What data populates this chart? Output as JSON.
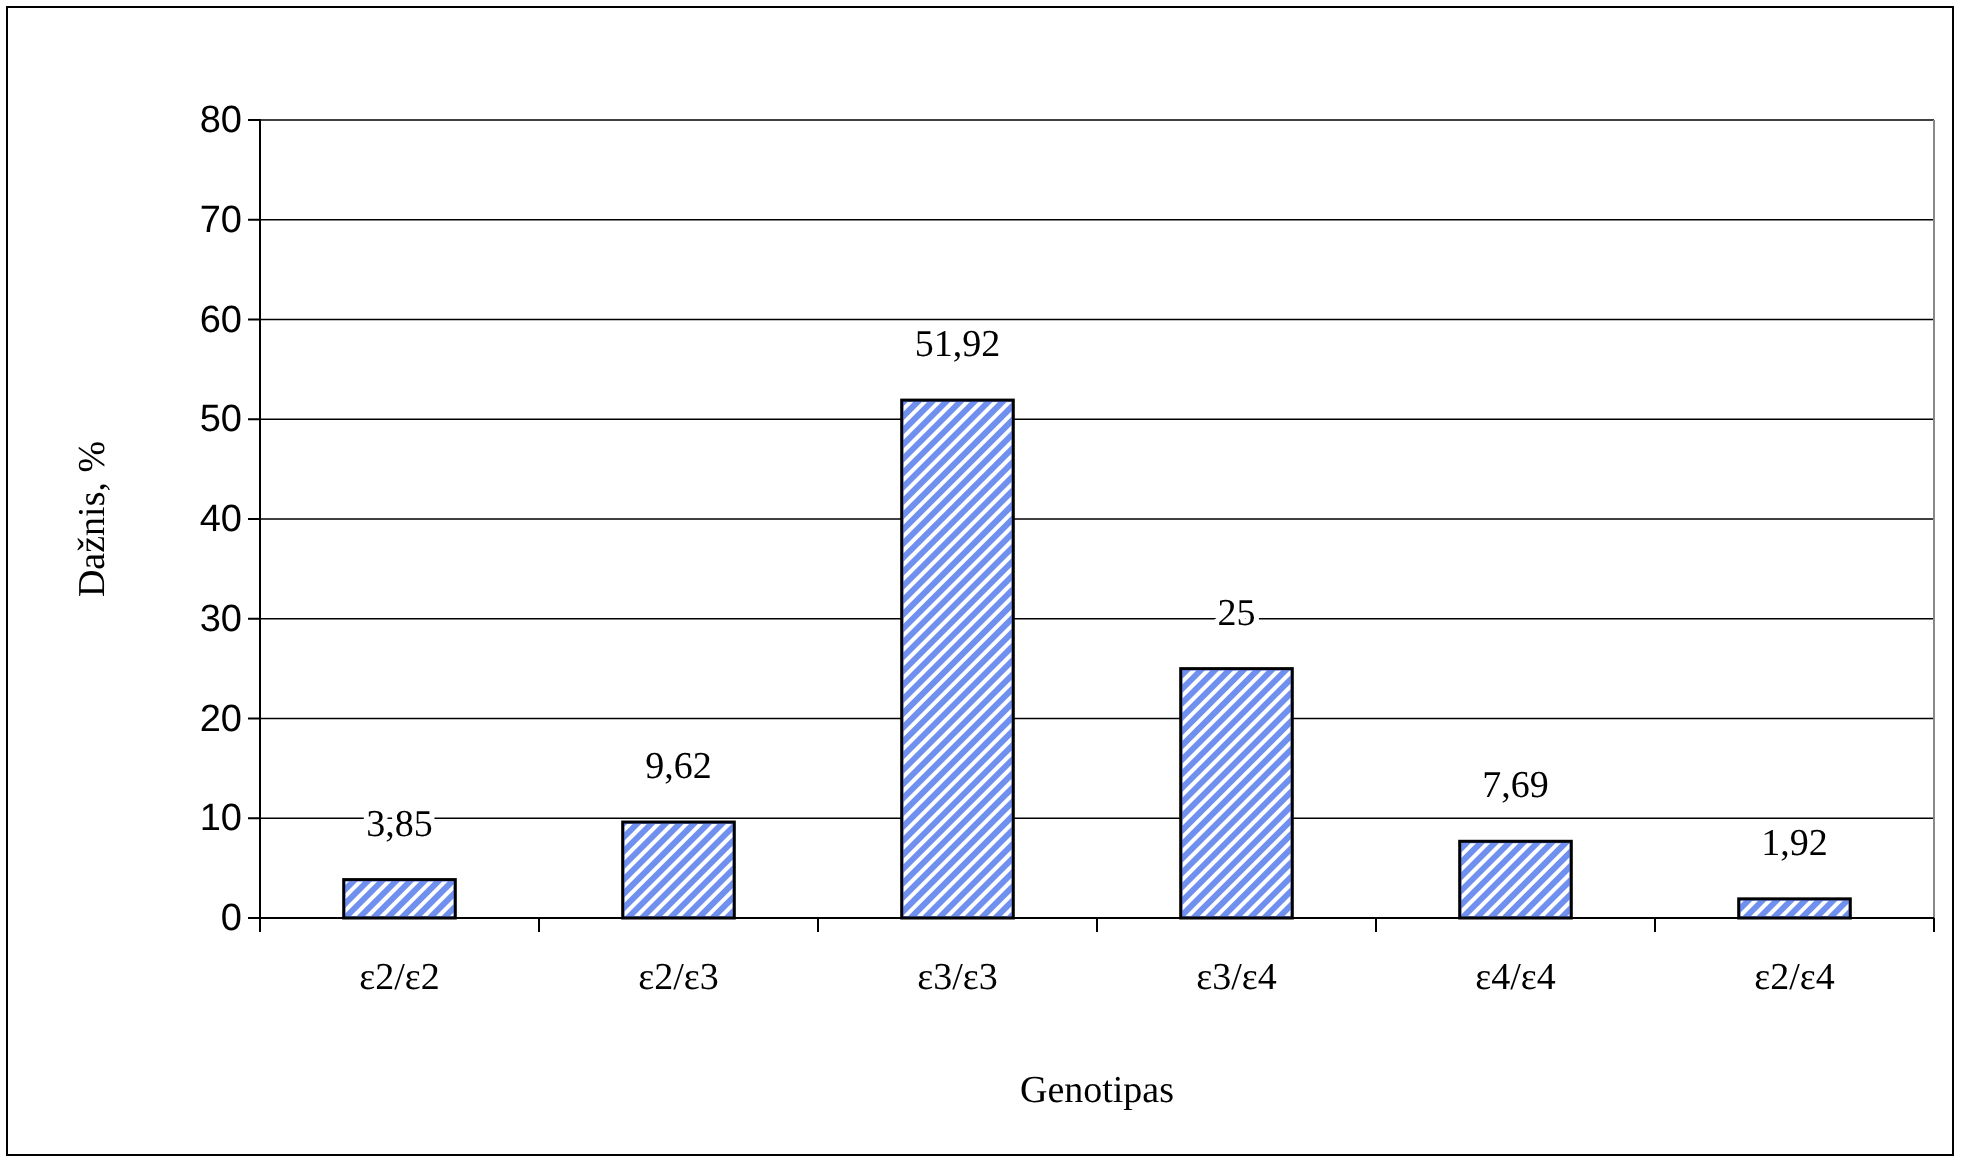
{
  "chart_data": {
    "type": "bar",
    "xlabel": "Genotipas",
    "ylabel": "Dažnis, %",
    "categories": [
      "ε2/ε2",
      "ε2/ε3",
      "ε3/ε3",
      "ε3/ε4",
      "ε4/ε4",
      "ε2/ε4"
    ],
    "values": [
      3.85,
      9.62,
      51.92,
      25,
      7.69,
      1.92
    ],
    "value_labels": [
      "3,85",
      "9,62",
      "51,92",
      "25",
      "7,69",
      "1,92"
    ],
    "color": "#7090f0",
    "ylim": [
      0,
      80
    ],
    "yticks": [
      0,
      10,
      20,
      30,
      40,
      50,
      60,
      70,
      80
    ],
    "grid": "y"
  }
}
